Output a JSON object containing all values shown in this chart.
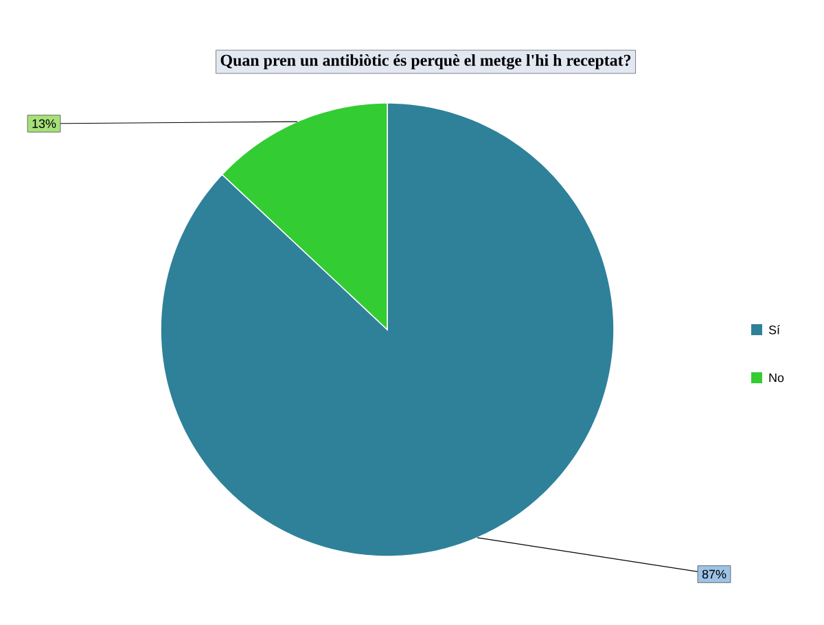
{
  "chart_data": {
    "type": "pie",
    "title": "Quan pren un antibiòtic és perquè el metge l'hi h receptat?",
    "categories": [
      "Sí",
      "No"
    ],
    "values": [
      87,
      13
    ],
    "colors": [
      "#2e8199",
      "#33cc33"
    ],
    "value_labels": [
      "87%",
      "13%"
    ],
    "legend": "right"
  }
}
